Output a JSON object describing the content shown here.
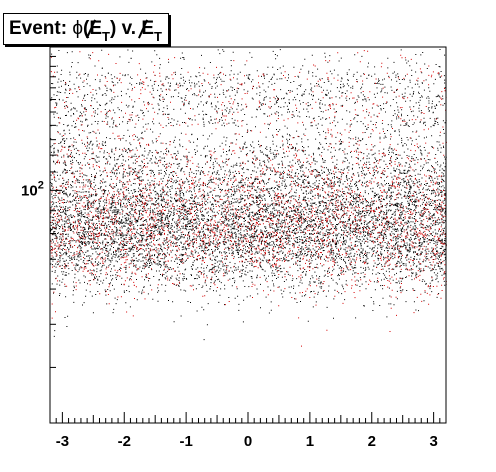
{
  "chart_data": {
    "type": "scatter",
    "title": {
      "prefix": "Event: ",
      "phi": "ϕ",
      "open": "(",
      "met1": "E",
      "sub1": "T",
      "mid": ") v. ",
      "met2": "E",
      "sub2": "T"
    },
    "xlabel": "",
    "ylabel": "",
    "xlim": [
      -3.2,
      3.2
    ],
    "ylim": [
      30,
      210
    ],
    "y_scale": "log",
    "x_ticks": [
      "-3",
      "-2",
      "-1",
      "0",
      "1",
      "2",
      "3"
    ],
    "x_tick_values": [
      -3,
      -2,
      -1,
      0,
      1,
      2,
      3
    ],
    "y_ticks": [
      {
        "base": "10",
        "exp": "2",
        "value": 100
      }
    ],
    "grid": false,
    "legend": "none",
    "series": [
      {
        "color": "#000000",
        "distribution": "dense, roughly uniform in x; y concentrated 60–110, sparse above 150",
        "approx_points": 9000
      },
      {
        "color": "#d40000",
        "distribution": "overlaid, same shape as the black points",
        "approx_points": 3000
      }
    ]
  }
}
